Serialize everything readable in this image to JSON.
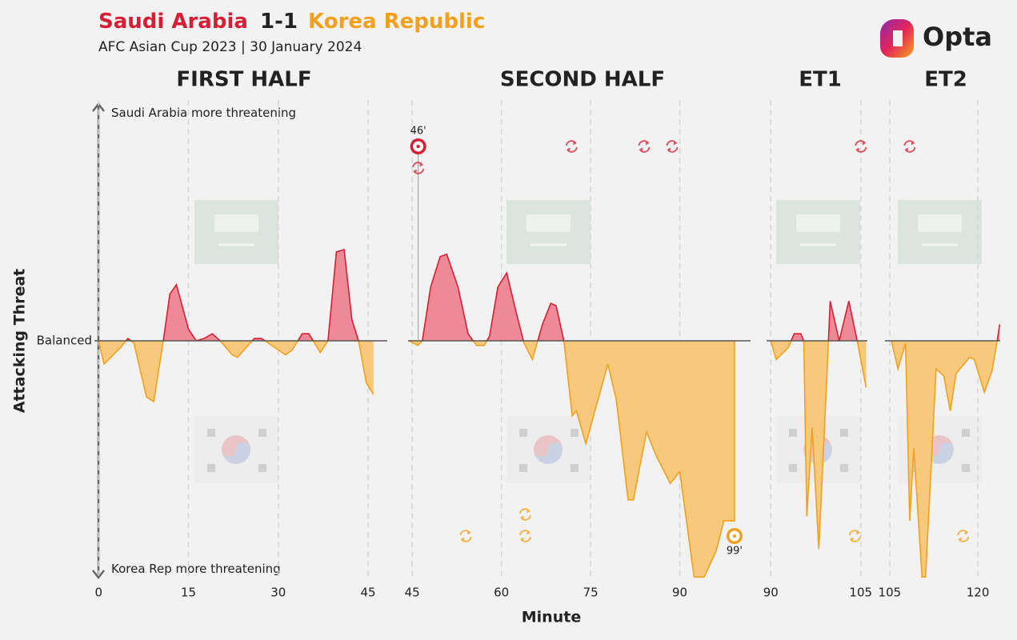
{
  "chart_data": {
    "type": "area",
    "title": {
      "home": "Saudi Arabia",
      "score": "1-1",
      "away": "Korea Republic"
    },
    "subtitle": "AFC Asian Cup 2023 | 30 January 2024",
    "logo": "Opta",
    "ylabel": "Attacking Threat",
    "xlabel": "Minute",
    "ylim": [
      -1.05,
      1.05
    ],
    "yticks": [
      {
        "value": 1,
        "label": "Saudi Arabia more threatening"
      },
      {
        "value": 0,
        "label": "Balanced"
      },
      {
        "value": -1,
        "label": "Korea Rep more threatening"
      }
    ],
    "grid": true,
    "colors": {
      "home": {
        "line": "#d81e34",
        "fill": "#ee8a95"
      },
      "away": {
        "line": "#f2a01e",
        "fill": "#f7c97d"
      }
    },
    "panels": [
      {
        "title": "FIRST HALF",
        "xlim": [
          -0.7,
          48.2
        ],
        "xticks": [
          0,
          15,
          30,
          45
        ],
        "x": [
          0,
          0.9,
          3.6,
          4.9,
          5.9,
          8,
          9.2,
          10.8,
          11.9,
          13,
          15,
          16.3,
          17.6,
          19,
          20.3,
          22.3,
          23.2,
          26,
          27.2,
          31.2,
          32.3,
          34,
          35.1,
          37,
          38.3,
          39.7,
          41,
          42.3,
          43.4,
          44.7,
          45.9
        ],
        "values": [
          0,
          -0.1,
          -0.03,
          0.01,
          -0.01,
          -0.24,
          -0.26,
          0,
          0.2,
          0.24,
          0.05,
          0,
          0.01,
          0.03,
          0,
          -0.06,
          -0.07,
          0.01,
          0.01,
          -0.06,
          -0.04,
          0.03,
          0.03,
          -0.05,
          0,
          0.38,
          0.39,
          0.09,
          0,
          -0.18,
          -0.23
        ],
        "goals": [],
        "substitutions": {
          "home": [],
          "away": []
        }
      },
      {
        "title": "SECOND HALF",
        "xlim": [
          44.3,
          101.9
        ],
        "xticks": [
          45,
          60,
          75,
          90
        ],
        "x": [
          44.5,
          45.9,
          46.7,
          48.1,
          49.7,
          50.8,
          52.7,
          54.4,
          55.8,
          57.1,
          58,
          59.4,
          60.9,
          62.5,
          63.8,
          65.2,
          66.9,
          68.3,
          69.2,
          70.5,
          71.9,
          72.6,
          74.2,
          75.5,
          77.9,
          79.3,
          81.3,
          82.2,
          84.4,
          86,
          88.4,
          90,
          92.4,
          94.1,
          96.1,
          97.4,
          99.2,
          99.2
        ],
        "values": [
          0,
          -0.02,
          0,
          0.23,
          0.36,
          0.37,
          0.23,
          0.03,
          -0.02,
          -0.02,
          0.02,
          0.23,
          0.29,
          0.12,
          -0.01,
          -0.08,
          0.07,
          0.16,
          0.15,
          0,
          -0.32,
          -0.3,
          -0.44,
          -0.32,
          -0.1,
          -0.25,
          -0.68,
          -0.68,
          -0.39,
          -0.49,
          -0.61,
          -0.56,
          -1.01,
          -1.01,
          -0.9,
          -0.77,
          -0.77,
          0
        ],
        "goals": [
          {
            "team": "home",
            "x": 46,
            "label": "46'"
          },
          {
            "team": "away",
            "x": 99.2,
            "label": "99'"
          }
        ],
        "substitutions": {
          "home": [
            46,
            71.8,
            84,
            88.7
          ],
          "away": [
            54,
            64,
            64
          ]
        }
      },
      {
        "title": "ET1",
        "xlim": [
          89.3,
          106.1
        ],
        "xticks": [
          90,
          105
        ],
        "x": [
          90,
          90.9,
          92.9,
          93.9,
          95,
          95.5,
          96,
          96.9,
          98,
          99.4,
          99.9,
          101.4,
          103,
          104.4,
          105.9
        ],
        "values": [
          0,
          -0.08,
          -0.03,
          0.03,
          0.03,
          0,
          -0.75,
          -0.37,
          -0.89,
          -0.12,
          0.17,
          0,
          0.17,
          0,
          -0.2
        ],
        "goals": [],
        "substitutions": {
          "home": [
            105
          ],
          "away": [
            104
          ]
        }
      },
      {
        "title": "ET2",
        "xlim": [
          104.2,
          123.8
        ],
        "xticks": [
          105,
          120
        ],
        "x": [
          105.3,
          106.4,
          107.7,
          108.4,
          109.1,
          110.5,
          111.1,
          112.9,
          114.2,
          115.3,
          116.3,
          118.6,
          119.4,
          121.1,
          122.4,
          123.3,
          123.7
        ],
        "values": [
          0,
          -0.12,
          -0.01,
          -0.77,
          -0.46,
          -1.01,
          -1.01,
          -0.12,
          -0.15,
          -0.3,
          -0.14,
          -0.07,
          -0.08,
          -0.22,
          -0.13,
          0,
          0.07
        ],
        "goals": [],
        "substitutions": {
          "home": [
            108.4
          ],
          "away": [
            117.5
          ]
        }
      }
    ]
  }
}
